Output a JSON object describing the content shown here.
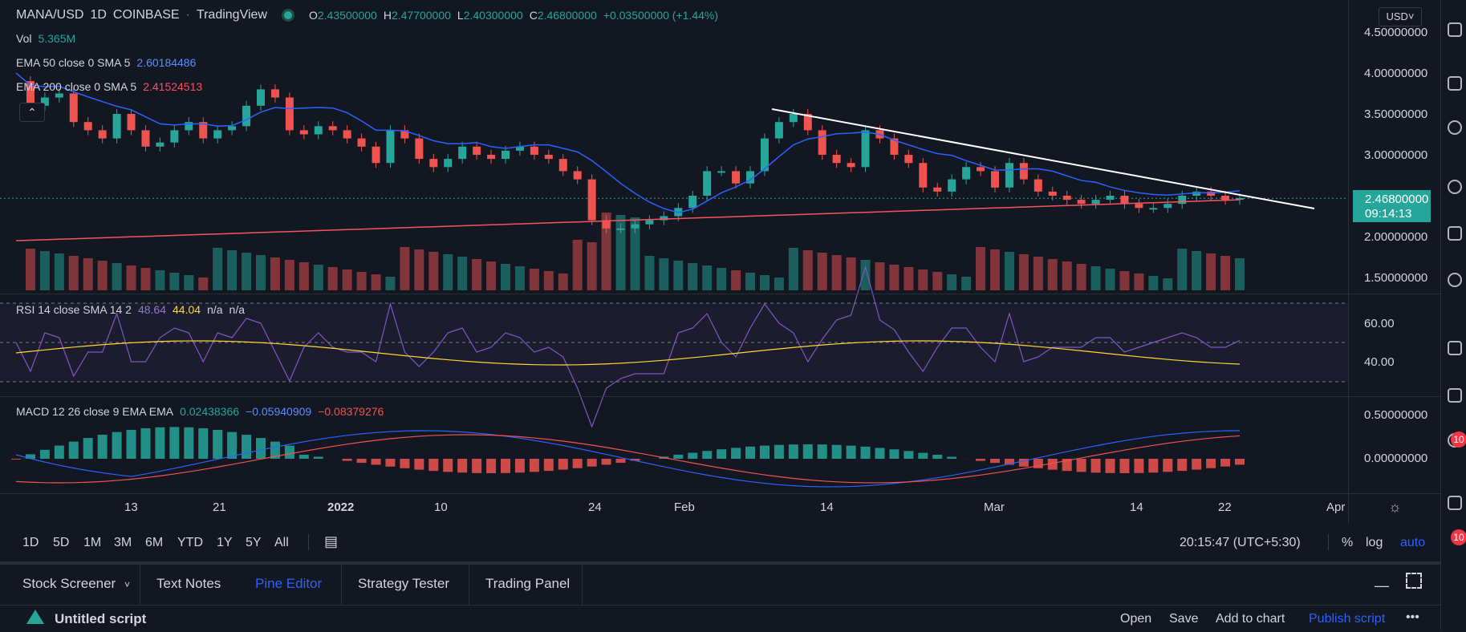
{
  "header": {
    "symbol": "MANA/USD",
    "interval": "1D",
    "exchange": "COINBASE",
    "source": "TradingView",
    "open_label": "O",
    "open": "2.43500000",
    "high_label": "H",
    "high": "2.47700000",
    "low_label": "L",
    "low": "2.40300000",
    "close_label": "C",
    "close": "2.46800000",
    "change": "+0.03500000 (+1.44%)",
    "currency": "USD"
  },
  "indicators": {
    "vol_label": "Vol",
    "vol_value": "5.365M",
    "ema50_label": "EMA 50 close 0 SMA 5",
    "ema50_value": "2.60184486",
    "ema200_label": "EMA 200 close 0 SMA 5",
    "ema200_value": "2.41524513",
    "rsi_label": "RSI 14 close SMA 14 2",
    "rsi_value": "48.64",
    "rsi_sma": "44.04",
    "rsi_na1": "n/a",
    "rsi_na2": "n/a",
    "macd_label": "MACD 12 26 close 9 EMA EMA",
    "macd_hist": "0.02438366",
    "macd_line": "−0.05940909",
    "macd_signal": "−0.08379276"
  },
  "price_scale": [
    "4.50000000",
    "4.00000000",
    "3.50000000",
    "3.00000000",
    "2.00000000",
    "1.50000000"
  ],
  "last_price": "2.46800000",
  "countdown": "09:14:13",
  "rsi_scale": [
    "60.00",
    "40.00"
  ],
  "macd_scale": [
    "0.50000000",
    "0.00000000"
  ],
  "time_axis": [
    "13",
    "21",
    "2022",
    "10",
    "24",
    "Feb",
    "14",
    "Mar",
    "14",
    "22",
    "Apr"
  ],
  "timeframes": [
    "1D",
    "5D",
    "1M",
    "3M",
    "6M",
    "YTD",
    "1Y",
    "5Y",
    "All"
  ],
  "clock": "20:15:47 (UTC+5:30)",
  "scale_opts": {
    "percent": "%",
    "log": "log",
    "auto": "auto"
  },
  "bottom_tabs": [
    "Stock Screener",
    "Text Notes",
    "Pine Editor",
    "Strategy Tester",
    "Trading Panel"
  ],
  "script": {
    "title": "Untitled script",
    "open": "Open",
    "save": "Save",
    "add": "Add to chart",
    "publish": "Publish script",
    "more": "•••"
  },
  "right_badge": "10",
  "colors": {
    "up": "#26a69a",
    "down": "#ef5350",
    "ema50": "#2962ff",
    "ema200": "#f7525f",
    "rsi": "#7e57c2",
    "rsi_sma": "#fdd835",
    "accent": "#2962ff"
  }
}
